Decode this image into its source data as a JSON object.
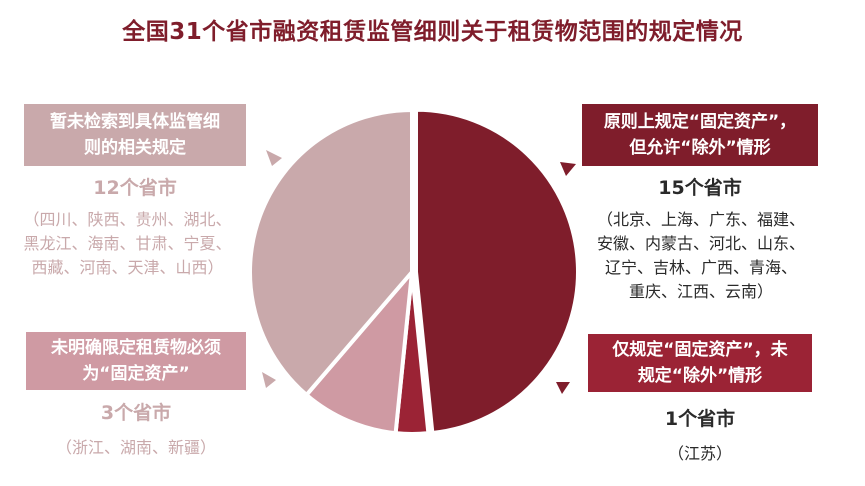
{
  "title": "全国31个省市融资租赁监管细则关于租赁物范围的规定情况",
  "colors": {
    "title": "#7f1d2b",
    "dark": "#7f1d2b",
    "mid": "#9b2335",
    "light": "#c9a9ab",
    "pink": "#cf9aa3"
  },
  "chart_data": {
    "type": "pie",
    "slices": [
      {
        "label": "原则上规定“固定资产”，但允许“除外”情形",
        "value": 15,
        "color": "#7f1d2b"
      },
      {
        "label": "仅规定“固定资产”，未规定“除外”情形",
        "value": 1,
        "color": "#9b2335"
      },
      {
        "label": "未明确限定租赁物必须为“固定资产”",
        "value": 3,
        "color": "#cf9aa3"
      },
      {
        "label": "暂未检索到具体监管细则的相关规定",
        "value": 12,
        "color": "#c9a9ab"
      }
    ]
  },
  "groups": {
    "top_right": {
      "label_line1": "原则上规定“固定资产”，",
      "label_line2": "但允许“除外”情形",
      "count": "15个省市",
      "list_line1": "（北京、上海、广东、福建、",
      "list_line2": "安徽、内蒙古、河北、山东、",
      "list_line3": "辽宁、吉林、广西、青海、",
      "list_line4": "重庆、江西、云南）"
    },
    "bottom_right": {
      "label_line1": "仅规定“固定资产”，未",
      "label_line2": "规定“除外”情形",
      "count": "1个省市",
      "list_line1": "（江苏）"
    },
    "top_left": {
      "label_line1": "暂未检索到具体监管细",
      "label_line2": "则的相关规定",
      "count": "12个省市",
      "list_line1": "（四川、陕西、贵州、湖北、",
      "list_line2": "黑龙江、海南、甘肃、宁夏、",
      "list_line3": "西藏、河南、天津、山西）"
    },
    "bottom_left": {
      "label_line1": "未明确限定租赁物必须",
      "label_line2": "为“固定资产”",
      "count": "3个省市",
      "list_line1": "（浙江、湖南、新疆）"
    }
  }
}
